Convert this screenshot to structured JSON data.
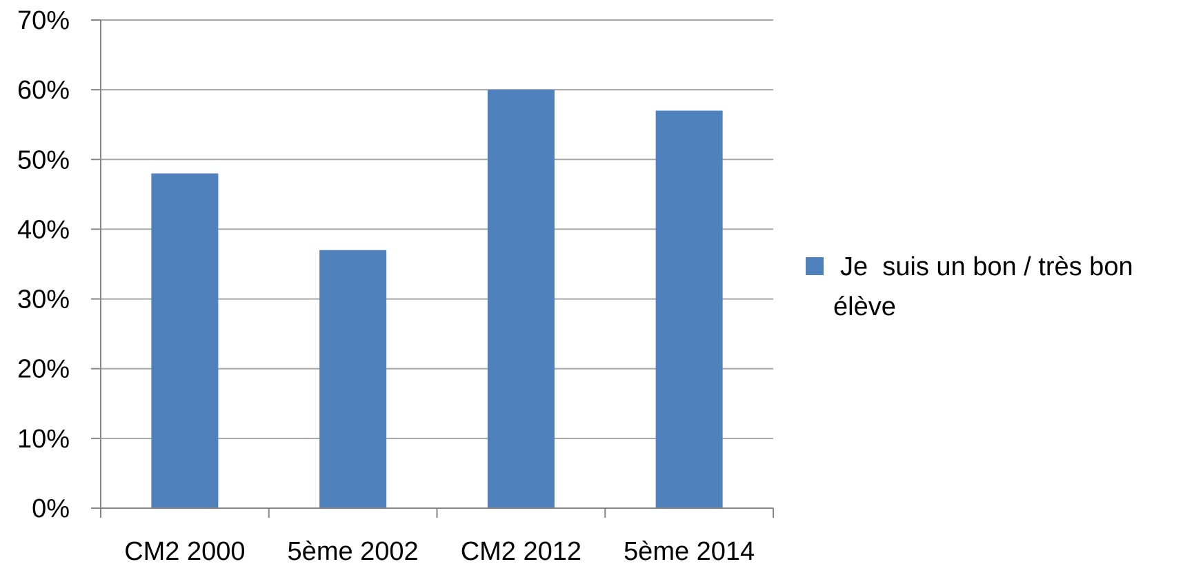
{
  "chart_data": {
    "type": "bar",
    "categories": [
      "CM2 2000",
      "5ème 2002",
      "CM2 2012",
      "5ème 2014"
    ],
    "series": [
      {
        "name": "Je  suis un bon / très bon élève",
        "values": [
          0.48,
          0.37,
          0.6,
          0.57
        ],
        "color": "#4F81BD"
      }
    ],
    "ylim": [
      0,
      0.7
    ],
    "yticks": [
      0,
      0.1,
      0.2,
      0.3,
      0.4,
      0.5,
      0.6,
      0.7
    ],
    "ytick_labels": [
      "0%",
      "10%",
      "20%",
      "30%",
      "40%",
      "50%",
      "60%",
      "70%"
    ],
    "grid": true,
    "legend": {
      "position": "right",
      "lines": [
        "Je  suis un bon / très bon",
        "élève"
      ]
    },
    "colors": {
      "gridline": "#A6A6A6",
      "axis": "#868686"
    }
  }
}
